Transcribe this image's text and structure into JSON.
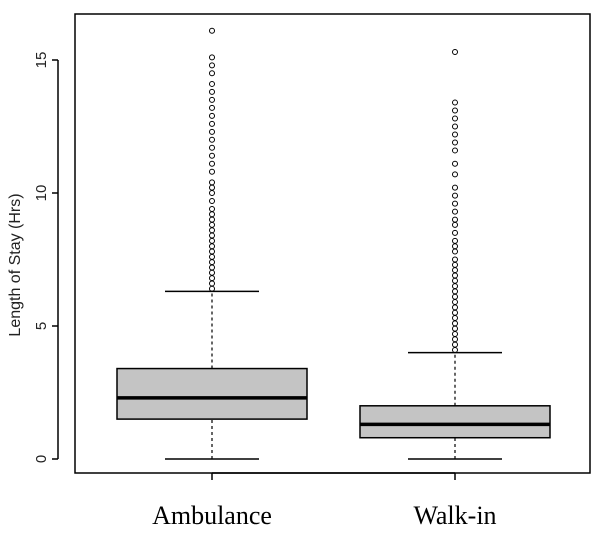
{
  "chart_data": {
    "type": "boxplot",
    "ylabel": "Length of Stay (Hrs)",
    "yticks": [
      0,
      5,
      10,
      15
    ],
    "ylim": [
      -0.3,
      16.5
    ],
    "box_color": "#c4c4c4",
    "groups": [
      {
        "name": "Ambulance",
        "whisker_low": 0.0,
        "q1": 1.5,
        "median": 2.3,
        "q3": 3.4,
        "whisker_high": 6.3,
        "outliers": [
          6.4,
          6.6,
          6.8,
          7.0,
          7.2,
          7.4,
          7.6,
          7.8,
          8.0,
          8.2,
          8.4,
          8.6,
          8.8,
          9.0,
          9.2,
          9.4,
          9.7,
          10.0,
          10.2,
          10.4,
          10.8,
          11.1,
          11.4,
          11.7,
          12.0,
          12.3,
          12.6,
          12.9,
          13.2,
          13.5,
          13.8,
          14.1,
          14.5,
          14.8,
          15.1,
          16.1
        ]
      },
      {
        "name": "Walk-in",
        "whisker_low": 0.0,
        "q1": 0.8,
        "median": 1.3,
        "q3": 2.0,
        "whisker_high": 4.0,
        "outliers": [
          4.1,
          4.3,
          4.5,
          4.7,
          4.9,
          5.1,
          5.3,
          5.5,
          5.7,
          5.9,
          6.1,
          6.3,
          6.5,
          6.7,
          6.9,
          7.1,
          7.3,
          7.5,
          7.8,
          8.0,
          8.2,
          8.5,
          8.8,
          9.0,
          9.3,
          9.6,
          9.9,
          10.2,
          10.7,
          11.1,
          11.6,
          11.9,
          12.2,
          12.5,
          12.8,
          13.1,
          13.4,
          15.3
        ]
      }
    ]
  }
}
